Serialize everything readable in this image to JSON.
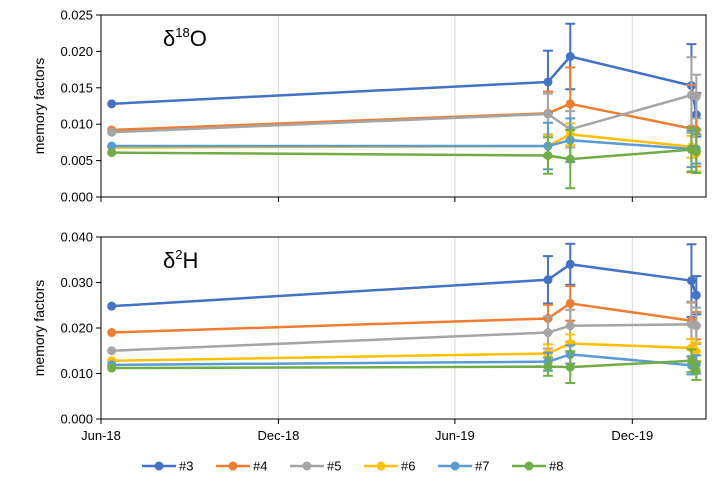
{
  "chart_data": {
    "type": "line",
    "x_tick_labels": [
      "Jun-18",
      "Dec-18",
      "Jun-19",
      "Dec-19"
    ],
    "x_tick_dates": [
      "2018-06-01",
      "2018-12-01",
      "2019-06-01",
      "2019-12-01"
    ],
    "x_range": [
      "2018-06-01",
      "2020-02-15"
    ],
    "grid": "vertical-major",
    "legend_position": "bottom",
    "panels": [
      {
        "ylabel": "memory factors",
        "annotation_greek": "δ",
        "annotation_sup": "18",
        "annotation_rest": "O",
        "ylim": [
          0,
          0.025
        ],
        "yticks": [
          0,
          0.005,
          0.01,
          0.015,
          0.02,
          0.025
        ],
        "y_tick_labels": [
          "0.000",
          "0.005",
          "0.010",
          "0.015",
          "0.020",
          "0.025"
        ],
        "series": [
          {
            "name": "#3",
            "color": "#4472C4",
            "points": [
              {
                "x": "2018-06-12",
                "y": 0.0128
              },
              {
                "x": "2019-09-05",
                "y": 0.0158,
                "err": 0.0043
              },
              {
                "x": "2019-09-28",
                "y": 0.0193,
                "err": 0.0045
              },
              {
                "x": "2020-01-31",
                "y": 0.0153,
                "err": 0.0057
              },
              {
                "x": "2020-02-05",
                "y": 0.0113,
                "err": 0.003
              }
            ]
          },
          {
            "name": "#4",
            "color": "#ED7D31",
            "points": [
              {
                "x": "2018-06-12",
                "y": 0.0092
              },
              {
                "x": "2019-09-05",
                "y": 0.0115,
                "err": 0.003
              },
              {
                "x": "2019-09-28",
                "y": 0.0128,
                "err": 0.005
              },
              {
                "x": "2020-01-31",
                "y": 0.0094,
                "err": 0.006
              },
              {
                "x": "2020-02-05",
                "y": 0.0092,
                "err": 0.005
              }
            ]
          },
          {
            "name": "#5",
            "color": "#A5A5A5",
            "points": [
              {
                "x": "2018-06-12",
                "y": 0.0089
              },
              {
                "x": "2019-09-05",
                "y": 0.0114,
                "err": 0.0028
              },
              {
                "x": "2019-09-28",
                "y": 0.0093,
                "err": 0.0025
              },
              {
                "x": "2020-01-31",
                "y": 0.014,
                "err": 0.0052
              },
              {
                "x": "2020-02-05",
                "y": 0.0138,
                "err": 0.003
              }
            ]
          },
          {
            "name": "#6",
            "color": "#FFC000",
            "points": [
              {
                "x": "2018-06-12",
                "y": 0.0068
              },
              {
                "x": "2019-09-05",
                "y": 0.007,
                "err": 0.0015
              },
              {
                "x": "2019-09-28",
                "y": 0.0086,
                "err": 0.0015
              },
              {
                "x": "2020-01-31",
                "y": 0.0069,
                "err": 0.0015
              },
              {
                "x": "2020-02-05",
                "y": 0.006,
                "err": 0.0025
              }
            ]
          },
          {
            "name": "#7",
            "color": "#5B9BD5",
            "points": [
              {
                "x": "2018-06-12",
                "y": 0.007
              },
              {
                "x": "2019-09-05",
                "y": 0.007,
                "err": 0.0032
              },
              {
                "x": "2019-09-28",
                "y": 0.0078,
                "err": 0.003
              },
              {
                "x": "2020-01-31",
                "y": 0.0066,
                "err": 0.0025
              },
              {
                "x": "2020-02-05",
                "y": 0.0066,
                "err": 0.002
              }
            ]
          },
          {
            "name": "#8",
            "color": "#70AD47",
            "points": [
              {
                "x": "2018-06-12",
                "y": 0.0061
              },
              {
                "x": "2019-09-05",
                "y": 0.0057,
                "err": 0.0025
              },
              {
                "x": "2019-09-28",
                "y": 0.0052,
                "err": 0.004
              },
              {
                "x": "2020-01-31",
                "y": 0.0065,
                "err": 0.003
              },
              {
                "x": "2020-02-05",
                "y": 0.0063,
                "err": 0.003
              }
            ]
          }
        ]
      },
      {
        "ylabel": "memory factors",
        "annotation_greek": "δ",
        "annotation_sup": "2",
        "annotation_rest": "H",
        "ylim": [
          0,
          0.04
        ],
        "yticks": [
          0,
          0.01,
          0.02,
          0.03,
          0.04
        ],
        "y_tick_labels": [
          "0.000",
          "0.010",
          "0.020",
          "0.030",
          "0.040"
        ],
        "series": [
          {
            "name": "#3",
            "color": "#4472C4",
            "points": [
              {
                "x": "2018-06-12",
                "y": 0.0248
              },
              {
                "x": "2019-09-05",
                "y": 0.0306,
                "err": 0.0052
              },
              {
                "x": "2019-09-28",
                "y": 0.034,
                "err": 0.0045
              },
              {
                "x": "2020-01-31",
                "y": 0.0304,
                "err": 0.008
              },
              {
                "x": "2020-02-05",
                "y": 0.0272,
                "err": 0.0042
              }
            ]
          },
          {
            "name": "#4",
            "color": "#ED7D31",
            "points": [
              {
                "x": "2018-06-12",
                "y": 0.019
              },
              {
                "x": "2019-09-05",
                "y": 0.0221,
                "err": 0.003
              },
              {
                "x": "2019-09-28",
                "y": 0.0254,
                "err": 0.0038
              },
              {
                "x": "2020-01-31",
                "y": 0.0216,
                "err": 0.004
              },
              {
                "x": "2020-02-05",
                "y": 0.0205,
                "err": 0.003
              }
            ]
          },
          {
            "name": "#5",
            "color": "#A5A5A5",
            "points": [
              {
                "x": "2018-06-12",
                "y": 0.015
              },
              {
                "x": "2019-09-05",
                "y": 0.019,
                "err": 0.0035
              },
              {
                "x": "2019-09-28",
                "y": 0.0205,
                "err": 0.0035
              },
              {
                "x": "2020-01-31",
                "y": 0.0208,
                "err": 0.005
              },
              {
                "x": "2020-02-05",
                "y": 0.0205,
                "err": 0.004
              }
            ]
          },
          {
            "name": "#6",
            "color": "#FFC000",
            "points": [
              {
                "x": "2018-06-12",
                "y": 0.0128
              },
              {
                "x": "2019-09-05",
                "y": 0.0144,
                "err": 0.002
              },
              {
                "x": "2019-09-28",
                "y": 0.0166,
                "err": 0.002
              },
              {
                "x": "2020-01-31",
                "y": 0.0156,
                "err": 0.002
              },
              {
                "x": "2020-02-05",
                "y": 0.0148,
                "err": 0.002
              }
            ]
          },
          {
            "name": "#7",
            "color": "#5B9BD5",
            "points": [
              {
                "x": "2018-06-12",
                "y": 0.0119
              },
              {
                "x": "2019-09-05",
                "y": 0.0126,
                "err": 0.002
              },
              {
                "x": "2019-09-28",
                "y": 0.0142,
                "err": 0.002
              },
              {
                "x": "2020-01-31",
                "y": 0.0118,
                "err": 0.002
              },
              {
                "x": "2020-02-05",
                "y": 0.012,
                "err": 0.002
              }
            ]
          },
          {
            "name": "#8",
            "color": "#70AD47",
            "points": [
              {
                "x": "2018-06-12",
                "y": 0.0112
              },
              {
                "x": "2019-09-05",
                "y": 0.0115,
                "err": 0.002
              },
              {
                "x": "2019-09-28",
                "y": 0.0114,
                "err": 0.0035
              },
              {
                "x": "2020-01-31",
                "y": 0.0128,
                "err": 0.0025
              },
              {
                "x": "2020-02-05",
                "y": 0.0106,
                "err": 0.002
              }
            ]
          }
        ]
      }
    ]
  }
}
